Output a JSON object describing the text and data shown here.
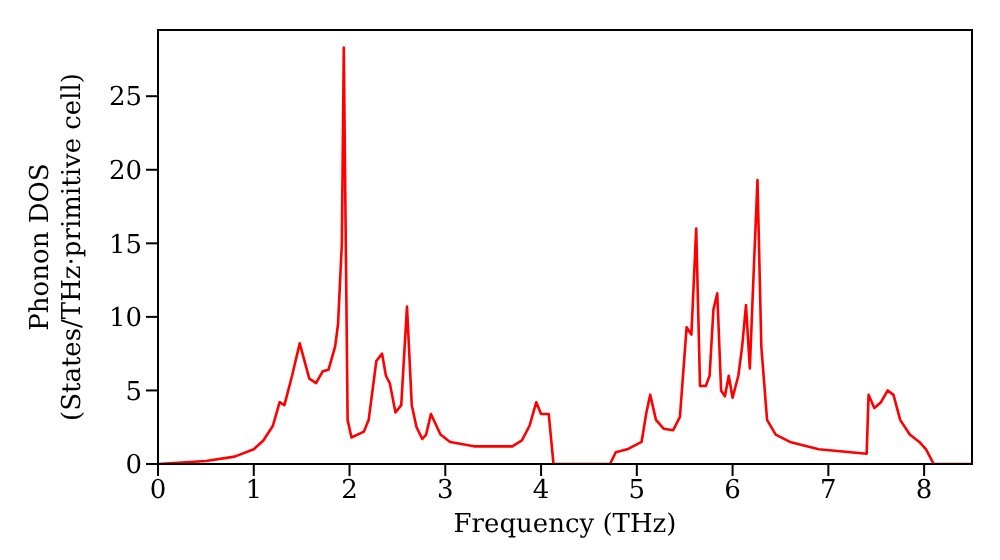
{
  "chart_data": {
    "type": "line",
    "xlabel": "Frequency (THz)",
    "ylabel": "Phonon DOS\n(States/THz·primitive cell)",
    "x": [
      0,
      0.5,
      0.8,
      1.0,
      1.1,
      1.2,
      1.27,
      1.32,
      1.4,
      1.48,
      1.58,
      1.65,
      1.72,
      1.78,
      1.85,
      1.88,
      1.92,
      1.94,
      1.98,
      2.02,
      2.15,
      2.2,
      2.28,
      2.34,
      2.38,
      2.42,
      2.48,
      2.54,
      2.6,
      2.65,
      2.7,
      2.76,
      2.8,
      2.85,
      2.95,
      3.05,
      3.3,
      3.7,
      3.8,
      3.88,
      3.95,
      4.0,
      4.08,
      4.13,
      4.72,
      4.78,
      4.9,
      5.05,
      5.1,
      5.14,
      5.2,
      5.28,
      5.38,
      5.45,
      5.52,
      5.57,
      5.62,
      5.66,
      5.72,
      5.76,
      5.8,
      5.84,
      5.88,
      5.92,
      5.96,
      6.0,
      6.06,
      6.1,
      6.14,
      6.18,
      6.22,
      6.26,
      6.3,
      6.36,
      6.45,
      6.6,
      6.9,
      7.4,
      7.42,
      7.48,
      7.55,
      7.62,
      7.68,
      7.75,
      7.85,
      7.95,
      8.02,
      8.1,
      8.5
    ],
    "series": [
      {
        "color": "#ff0000",
        "values": [
          0,
          0.2,
          0.5,
          1.0,
          1.6,
          2.6,
          4.2,
          4.0,
          6,
          8.2,
          5.8,
          5.5,
          6.3,
          6.4,
          8,
          9.5,
          15,
          28.3,
          3,
          1.8,
          2.2,
          3,
          7,
          7.5,
          6,
          5.5,
          3.5,
          4,
          10.7,
          4,
          2.5,
          1.7,
          2,
          3.4,
          2,
          1.5,
          1.2,
          1.2,
          1.6,
          2.6,
          4.2,
          3.4,
          3.4,
          0,
          0,
          0.8,
          1.0,
          1.5,
          3.5,
          4.7,
          3,
          2.4,
          2.3,
          3.2,
          9.3,
          8.8,
          16,
          5.3,
          5.3,
          6,
          10.5,
          11.6,
          5,
          4.6,
          6,
          4.5,
          6,
          8,
          10.8,
          6.5,
          13,
          19.3,
          8,
          3,
          2,
          1.5,
          1.0,
          0.7,
          4.7,
          3.8,
          4.2,
          5,
          4.7,
          3,
          2,
          1.5,
          1,
          0,
          0
        ]
      }
    ],
    "xlim": [
      0,
      8.5
    ],
    "xticks": [
      0,
      1,
      2,
      3,
      4,
      5,
      6,
      7,
      8
    ],
    "ylim": [
      0,
      29.5
    ],
    "yticks": [
      0,
      5,
      10,
      15,
      20,
      25
    ],
    "grid": false,
    "legend": false,
    "marker": "none",
    "line_style": "solid"
  }
}
